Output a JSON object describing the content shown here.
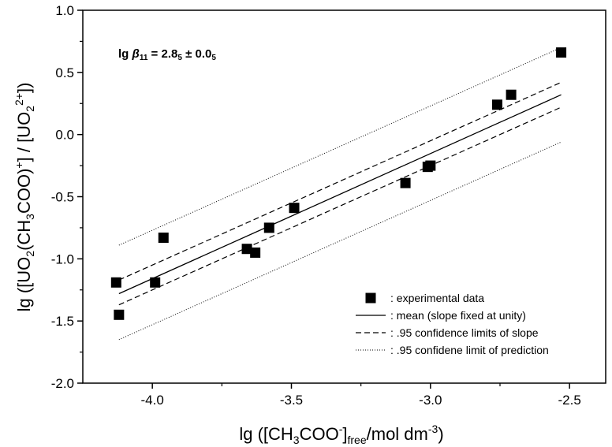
{
  "chart_data": {
    "type": "scatter",
    "xlabel": {
      "prefix": "lg ([CH",
      "sub1": "3",
      "mid1": "COO",
      "sup1": "-",
      "mid2": "]",
      "sub2": "free",
      "mid3": "/mol dm",
      "sup2": "-3",
      "suffix": ")"
    },
    "ylabel": {
      "p1": "lg ([UO",
      "s1": "2",
      "p2": "(CH",
      "s2": "3",
      "p3": "COO)",
      "sup1": "+",
      "p4": "] / [UO",
      "s3": "2",
      "sup2": "2+",
      "p5": "])"
    },
    "annotation": {
      "prefix": "lg ",
      "beta": "β",
      "beta_sub": "11",
      "eq": " = 2.8",
      "sub_a": "5",
      "pm": " ± 0.0",
      "sub_b": "5"
    },
    "xlim": [
      -4.25,
      -2.37
    ],
    "ylim": [
      -2.0,
      1.0
    ],
    "x_ticks": [
      -4.0,
      -3.5,
      -3.0,
      -2.5
    ],
    "x_tick_labels": [
      "-4.0",
      "-3.5",
      "-3.0",
      "-2.5"
    ],
    "y_ticks": [
      -2.0,
      -1.5,
      -1.0,
      -0.5,
      0.0,
      0.5,
      1.0
    ],
    "y_tick_labels": [
      "-2.0",
      "-1.5",
      "-1.0",
      "-0.5",
      "0.0",
      "0.5",
      "1.0"
    ],
    "grid": false,
    "legend_position": "bottom-right",
    "series": [
      {
        "name": ": experimental data",
        "kind": "markers",
        "points": [
          [
            -4.13,
            -1.19
          ],
          [
            -4.12,
            -1.45
          ],
          [
            -3.99,
            -1.19
          ],
          [
            -3.96,
            -0.83
          ],
          [
            -3.66,
            -0.92
          ],
          [
            -3.63,
            -0.95
          ],
          [
            -3.58,
            -0.75
          ],
          [
            -3.49,
            -0.59
          ],
          [
            -3.09,
            -0.39
          ],
          [
            -3.01,
            -0.26
          ],
          [
            -3.0,
            -0.25
          ],
          [
            -2.76,
            0.24
          ],
          [
            -2.71,
            0.32
          ],
          [
            -2.53,
            0.66
          ]
        ]
      },
      {
        "name": ": mean (slope fixed at unity)",
        "kind": "solid",
        "lines": [
          [
            [
              -4.12,
              -1.28
            ],
            [
              -2.53,
              0.32
            ]
          ]
        ]
      },
      {
        "name": ": .95 confidence limits of slope",
        "kind": "dashed",
        "lines": [
          [
            [
              -4.12,
              -1.17
            ],
            [
              -2.53,
              0.42
            ]
          ],
          [
            [
              -4.12,
              -1.37
            ],
            [
              -2.53,
              0.22
            ]
          ]
        ]
      },
      {
        "name": ": .95 confidene limit of prediction",
        "kind": "dotted",
        "lines": [
          [
            [
              -4.12,
              -0.89
            ],
            [
              -2.53,
              0.7
            ]
          ],
          [
            [
              -4.12,
              -1.65
            ],
            [
              -2.53,
              -0.06
            ]
          ]
        ]
      }
    ]
  }
}
